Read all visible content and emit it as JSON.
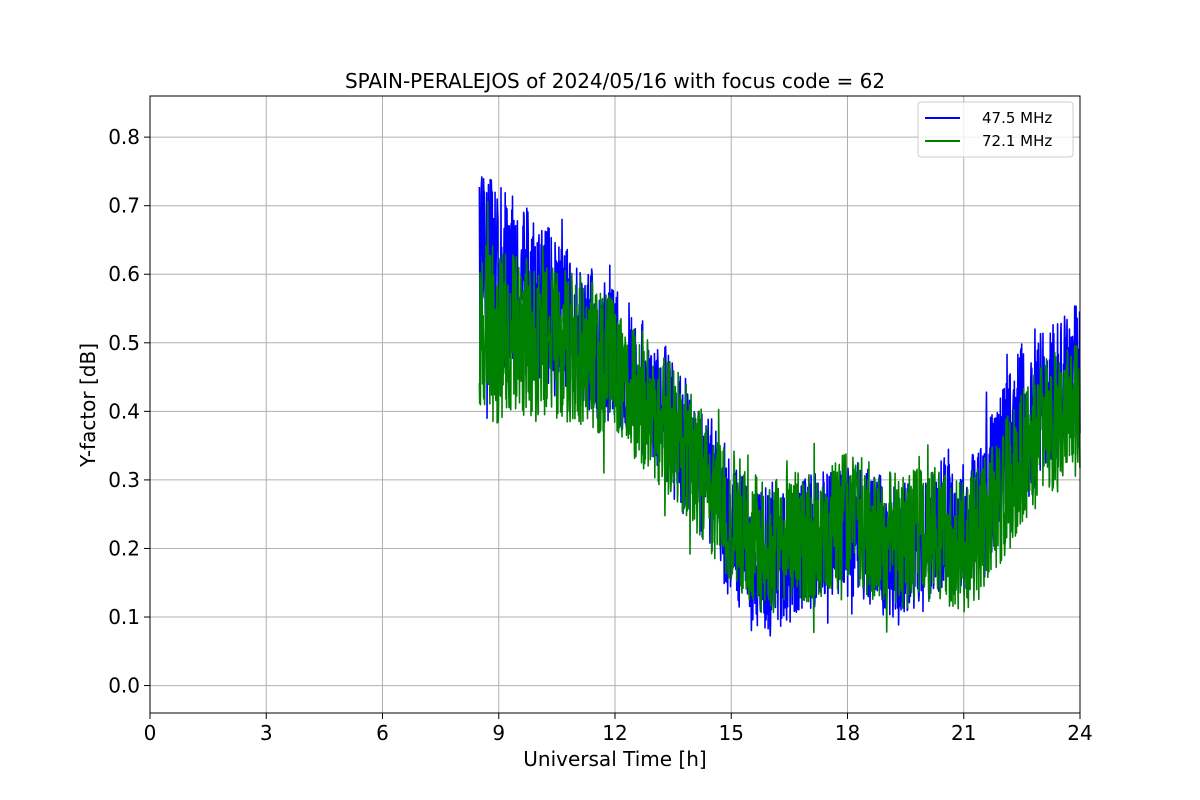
{
  "chart_data": {
    "type": "line",
    "title": "SPAIN-PERALEJOS of 2024/05/16 with focus code = 62",
    "xlabel": "Universal Time [h]",
    "ylabel": "Y-factor [dB]",
    "xlim": [
      0,
      24
    ],
    "ylim": [
      -0.04,
      0.86
    ],
    "xticks": [
      0,
      3,
      6,
      9,
      12,
      15,
      18,
      21,
      24
    ],
    "xtick_labels": [
      "0",
      "3",
      "6",
      "9",
      "12",
      "15",
      "18",
      "21",
      "24"
    ],
    "yticks": [
      0.0,
      0.1,
      0.2,
      0.3,
      0.4,
      0.5,
      0.6,
      0.7,
      0.8
    ],
    "ytick_labels": [
      "0.0",
      "0.1",
      "0.2",
      "0.3",
      "0.4",
      "0.5",
      "0.6",
      "0.7",
      "0.8"
    ],
    "grid": true,
    "legend_position": "top-right",
    "series": [
      {
        "name": "47.5 MHz",
        "color": "#0000ff",
        "x": [
          8.5,
          9,
          9.5,
          10,
          10.5,
          11,
          11.5,
          12,
          12.5,
          13,
          13.5,
          14,
          14.5,
          15,
          15.5,
          16,
          16.5,
          17,
          17.5,
          18,
          18.5,
          19,
          19.5,
          20,
          20.5,
          21,
          21.5,
          22,
          22.5,
          23,
          23.5,
          24
        ],
        "y": [
          0.6,
          0.59,
          0.58,
          0.56,
          0.54,
          0.52,
          0.5,
          0.48,
          0.45,
          0.42,
          0.38,
          0.34,
          0.29,
          0.23,
          0.19,
          0.18,
          0.19,
          0.21,
          0.22,
          0.23,
          0.22,
          0.2,
          0.2,
          0.22,
          0.24,
          0.23,
          0.27,
          0.33,
          0.38,
          0.41,
          0.43,
          0.45
        ],
        "amplitude": [
          0.15,
          0.14,
          0.13,
          0.12,
          0.12,
          0.11,
          0.11,
          0.1,
          0.1,
          0.1,
          0.1,
          0.1,
          0.1,
          0.11,
          0.11,
          0.11,
          0.1,
          0.1,
          0.1,
          0.1,
          0.1,
          0.1,
          0.1,
          0.1,
          0.1,
          0.1,
          0.1,
          0.11,
          0.12,
          0.12,
          0.11,
          0.11
        ]
      },
      {
        "name": "72.1 MHz",
        "color": "#008000",
        "x": [
          8.5,
          9,
          9.5,
          10,
          10.5,
          11,
          11.5,
          12,
          12.5,
          13,
          13.5,
          14,
          14.5,
          15,
          15.5,
          16,
          16.5,
          17,
          17.5,
          18,
          18.5,
          19,
          19.5,
          20,
          20.5,
          21,
          21.5,
          22,
          22.5,
          23,
          23.5,
          24
        ],
        "y": [
          0.52,
          0.51,
          0.51,
          0.5,
          0.5,
          0.49,
          0.48,
          0.46,
          0.43,
          0.4,
          0.37,
          0.33,
          0.29,
          0.25,
          0.21,
          0.2,
          0.21,
          0.22,
          0.23,
          0.24,
          0.23,
          0.22,
          0.21,
          0.22,
          0.22,
          0.2,
          0.23,
          0.28,
          0.33,
          0.37,
          0.39,
          0.41
        ],
        "amplitude": [
          0.13,
          0.13,
          0.12,
          0.12,
          0.11,
          0.11,
          0.11,
          0.1,
          0.1,
          0.1,
          0.1,
          0.1,
          0.1,
          0.1,
          0.1,
          0.1,
          0.1,
          0.1,
          0.1,
          0.1,
          0.1,
          0.1,
          0.1,
          0.1,
          0.1,
          0.1,
          0.1,
          0.1,
          0.1,
          0.1,
          0.1,
          0.1
        ]
      }
    ]
  }
}
